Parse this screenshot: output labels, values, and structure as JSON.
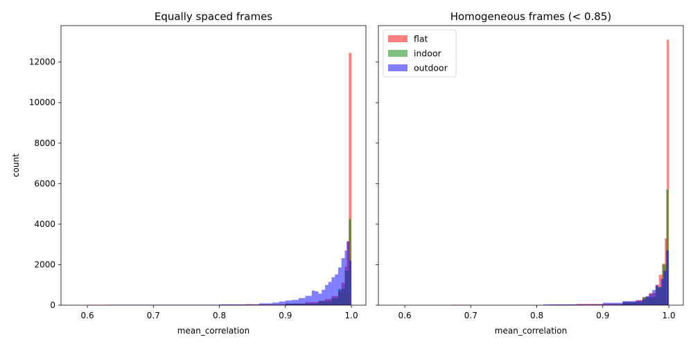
{
  "chart_data": [
    {
      "type": "histogram",
      "title": "Equally spaced frames",
      "xlabel": "mean_correlation",
      "ylabel": "count",
      "xlim": [
        0.56,
        1.022
      ],
      "ylim": [
        0,
        13800
      ],
      "xticks": [
        "0.6",
        "0.7",
        "0.8",
        "0.9",
        "1.0"
      ],
      "yticks": [
        "0",
        "2000",
        "4000",
        "6000",
        "8000",
        "10000",
        "12000"
      ],
      "legend": null,
      "series": [
        {
          "name": "flat",
          "color": "#ff0000",
          "alpha": 0.5,
          "bins": [
            [
              0.6,
              0.67,
              20
            ],
            [
              0.67,
              0.7,
              20
            ],
            [
              0.7,
              0.8,
              20
            ],
            [
              0.8,
              0.84,
              30
            ],
            [
              0.84,
              0.85,
              50
            ],
            [
              0.85,
              0.9,
              40
            ],
            [
              0.9,
              0.93,
              80
            ],
            [
              0.93,
              0.95,
              150
            ],
            [
              0.95,
              0.96,
              220
            ],
            [
              0.96,
              0.97,
              300
            ],
            [
              0.97,
              0.98,
              450
            ],
            [
              0.98,
              0.985,
              700
            ],
            [
              0.985,
              0.99,
              1100
            ],
            [
              0.99,
              0.993,
              1900
            ],
            [
              0.993,
              0.996,
              3150
            ],
            [
              0.996,
              1.0,
              12450
            ]
          ]
        },
        {
          "name": "indoor",
          "color": "#008000",
          "alpha": 0.5,
          "bins": [
            [
              0.9,
              0.95,
              80
            ],
            [
              0.95,
              0.97,
              200
            ],
            [
              0.97,
              0.98,
              350
            ],
            [
              0.98,
              0.99,
              800
            ],
            [
              0.99,
              0.996,
              1700
            ],
            [
              0.996,
              1.0,
              4250
            ]
          ]
        },
        {
          "name": "outdoor",
          "color": "#0000ff",
          "alpha": 0.5,
          "bins": [
            [
              0.63,
              0.8,
              20
            ],
            [
              0.8,
              0.86,
              40
            ],
            [
              0.86,
              0.88,
              90
            ],
            [
              0.88,
              0.89,
              130
            ],
            [
              0.89,
              0.9,
              180
            ],
            [
              0.9,
              0.91,
              230
            ],
            [
              0.91,
              0.92,
              260
            ],
            [
              0.92,
              0.93,
              350
            ],
            [
              0.93,
              0.94,
              460
            ],
            [
              0.94,
              0.945,
              720
            ],
            [
              0.945,
              0.95,
              680
            ],
            [
              0.95,
              0.955,
              570
            ],
            [
              0.955,
              0.96,
              760
            ],
            [
              0.96,
              0.965,
              1000
            ],
            [
              0.965,
              0.97,
              1150
            ],
            [
              0.97,
              0.975,
              1380
            ],
            [
              0.975,
              0.98,
              1520
            ],
            [
              0.98,
              0.985,
              1860
            ],
            [
              0.985,
              0.99,
              2320
            ],
            [
              0.99,
              0.993,
              2700
            ],
            [
              0.993,
              0.997,
              3150
            ],
            [
              0.997,
              1.0,
              2200
            ]
          ]
        }
      ]
    },
    {
      "type": "histogram",
      "title": "Homogeneous frames (< 0.85)",
      "xlabel": "mean_correlation",
      "ylabel": "",
      "xlim": [
        0.56,
        1.022
      ],
      "ylim": [
        0,
        13800
      ],
      "xticks": [
        "0.6",
        "0.7",
        "0.8",
        "0.9",
        "1.0"
      ],
      "yticks": [
        "0",
        "2000",
        "4000",
        "6000",
        "8000",
        "10000",
        "12000"
      ],
      "legend": "top-left",
      "series": [
        {
          "name": "flat",
          "color": "#ff0000",
          "alpha": 0.5,
          "bins": [
            [
              0.67,
              0.7,
              20
            ],
            [
              0.82,
              0.86,
              30
            ],
            [
              0.86,
              0.93,
              60
            ],
            [
              0.93,
              0.95,
              150
            ],
            [
              0.95,
              0.96,
              250
            ],
            [
              0.96,
              0.97,
              400
            ],
            [
              0.97,
              0.98,
              600
            ],
            [
              0.98,
              0.985,
              1000
            ],
            [
              0.985,
              0.99,
              1500
            ],
            [
              0.99,
              0.994,
              2050
            ],
            [
              0.994,
              0.997,
              3300
            ],
            [
              0.997,
              1.0,
              13100
            ]
          ]
        },
        {
          "name": "indoor",
          "color": "#008000",
          "alpha": 0.5,
          "bins": [
            [
              0.93,
              0.96,
              150
            ],
            [
              0.96,
              0.98,
              400
            ],
            [
              0.98,
              0.99,
              900
            ],
            [
              0.99,
              0.996,
              2000
            ],
            [
              0.996,
              1.0,
              5700
            ]
          ]
        },
        {
          "name": "outdoor",
          "color": "#0000ff",
          "alpha": 0.5,
          "bins": [
            [
              0.81,
              0.9,
              40
            ],
            [
              0.9,
              0.93,
              120
            ],
            [
              0.93,
              0.95,
              200
            ],
            [
              0.95,
              0.96,
              230
            ],
            [
              0.96,
              0.965,
              300
            ],
            [
              0.965,
              0.97,
              450
            ],
            [
              0.97,
              0.975,
              560
            ],
            [
              0.975,
              0.98,
              750
            ],
            [
              0.98,
              0.984,
              1000
            ],
            [
              0.984,
              0.988,
              880
            ],
            [
              0.988,
              0.992,
              1300
            ],
            [
              0.992,
              0.996,
              1700
            ],
            [
              0.996,
              1.0,
              2700
            ]
          ]
        }
      ]
    }
  ]
}
